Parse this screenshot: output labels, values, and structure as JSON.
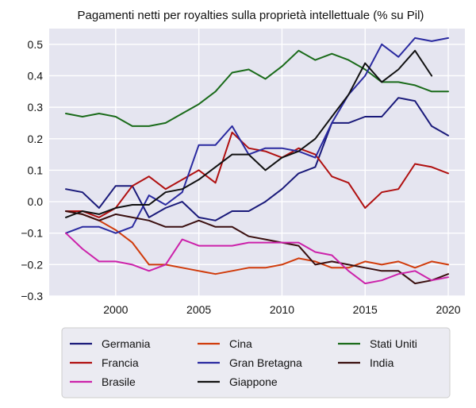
{
  "chart_data": {
    "type": "line",
    "title": "Pagamenti netti per royalties sulla proprietà intellettuale (% su Pil)",
    "xlabel": "",
    "ylabel": "",
    "xlim": [
      1996,
      2021
    ],
    "ylim": [
      -0.3,
      0.55
    ],
    "x_ticks": [
      2000,
      2005,
      2010,
      2015,
      2020
    ],
    "y_ticks": [
      -0.3,
      -0.2,
      -0.1,
      0.0,
      0.1,
      0.2,
      0.3,
      0.4,
      0.5
    ],
    "x_tick_labels": [
      "2000",
      "2005",
      "2010",
      "2015",
      "2020"
    ],
    "y_tick_labels": [
      "−0.3",
      "−0.2",
      "−0.1",
      "0.0",
      "0.1",
      "0.2",
      "0.3",
      "0.4",
      "0.5"
    ],
    "grid": true,
    "legend_position": "bottom",
    "background": "#e5e5f0",
    "series": [
      {
        "name": "Germania",
        "color": "#1a1a7a",
        "x": [
          1997,
          1998,
          1999,
          2000,
          2001,
          2002,
          2003,
          2004,
          2005,
          2006,
          2007,
          2008,
          2009,
          2010,
          2011,
          2012,
          2013,
          2014,
          2015,
          2016,
          2017,
          2018,
          2019,
          2020
        ],
        "y": [
          0.04,
          0.03,
          -0.02,
          0.05,
          0.05,
          -0.05,
          -0.02,
          0.0,
          -0.05,
          -0.06,
          -0.03,
          -0.03,
          0.0,
          0.04,
          0.09,
          0.11,
          0.25,
          0.25,
          0.27,
          0.27,
          0.33,
          0.32,
          0.24,
          0.21
        ]
      },
      {
        "name": "Cina",
        "color": "#d03b0b",
        "x": [
          1997,
          1998,
          1999,
          2000,
          2001,
          2002,
          2003,
          2004,
          2005,
          2006,
          2007,
          2008,
          2009,
          2010,
          2011,
          2012,
          2013,
          2014,
          2015,
          2016,
          2017,
          2018,
          2019,
          2020
        ],
        "y": [
          -0.03,
          -0.04,
          -0.06,
          -0.09,
          -0.13,
          -0.2,
          -0.2,
          -0.21,
          -0.22,
          -0.23,
          -0.22,
          -0.21,
          -0.21,
          -0.2,
          -0.18,
          -0.19,
          -0.21,
          -0.21,
          -0.19,
          -0.2,
          -0.19,
          -0.21,
          -0.19,
          -0.2
        ]
      },
      {
        "name": "Stati Uniti",
        "color": "#1a6b1a",
        "x": [
          1997,
          1998,
          1999,
          2000,
          2001,
          2002,
          2003,
          2004,
          2005,
          2006,
          2007,
          2008,
          2009,
          2010,
          2011,
          2012,
          2013,
          2014,
          2015,
          2016,
          2017,
          2018,
          2019,
          2020
        ],
        "y": [
          0.28,
          0.27,
          0.28,
          0.27,
          0.24,
          0.24,
          0.25,
          0.28,
          0.31,
          0.35,
          0.41,
          0.42,
          0.39,
          0.43,
          0.48,
          0.45,
          0.47,
          0.45,
          0.42,
          0.38,
          0.38,
          0.37,
          0.35,
          0.35
        ]
      },
      {
        "name": "Francia",
        "color": "#b01010",
        "x": [
          1997,
          1998,
          1999,
          2000,
          2001,
          2002,
          2003,
          2004,
          2005,
          2006,
          2007,
          2008,
          2009,
          2010,
          2011,
          2012,
          2013,
          2014,
          2015,
          2016,
          2017,
          2018,
          2019,
          2020
        ],
        "y": [
          -0.03,
          -0.03,
          -0.05,
          -0.02,
          0.05,
          0.08,
          0.04,
          0.07,
          0.1,
          0.06,
          0.22,
          0.17,
          0.16,
          0.14,
          0.17,
          0.15,
          0.08,
          0.06,
          -0.02,
          0.03,
          0.04,
          0.12,
          0.11,
          0.09
        ]
      },
      {
        "name": "Gran Bretagna",
        "color": "#2a2aa0",
        "x": [
          1997,
          1998,
          1999,
          2000,
          2001,
          2002,
          2003,
          2004,
          2005,
          2006,
          2007,
          2008,
          2009,
          2010,
          2011,
          2012,
          2013,
          2014,
          2015,
          2016,
          2017,
          2018,
          2019,
          2020
        ],
        "y": [
          -0.1,
          -0.08,
          -0.08,
          -0.1,
          -0.08,
          0.02,
          -0.01,
          0.03,
          0.18,
          0.18,
          0.24,
          0.15,
          0.17,
          0.17,
          0.16,
          0.14,
          0.25,
          0.34,
          0.4,
          0.5,
          0.46,
          0.52,
          0.51,
          0.52
        ]
      },
      {
        "name": "India",
        "color": "#3a0f0f",
        "x": [
          1997,
          1998,
          1999,
          2000,
          2001,
          2002,
          2003,
          2004,
          2005,
          2006,
          2007,
          2008,
          2009,
          2010,
          2011,
          2012,
          2013,
          2014,
          2015,
          2016,
          2017,
          2018,
          2019,
          2020
        ],
        "y": [
          -0.03,
          -0.04,
          -0.06,
          -0.04,
          -0.05,
          -0.06,
          -0.08,
          -0.08,
          -0.06,
          -0.08,
          -0.08,
          -0.11,
          -0.12,
          -0.13,
          -0.14,
          -0.2,
          -0.19,
          -0.2,
          -0.21,
          -0.22,
          -0.22,
          -0.26,
          -0.25,
          -0.23
        ]
      },
      {
        "name": "Brasile",
        "color": "#cc22aa",
        "x": [
          1997,
          1998,
          1999,
          2000,
          2001,
          2002,
          2003,
          2004,
          2005,
          2006,
          2007,
          2008,
          2009,
          2010,
          2011,
          2012,
          2013,
          2014,
          2015,
          2016,
          2017,
          2018,
          2019,
          2020
        ],
        "y": [
          -0.1,
          -0.15,
          -0.19,
          -0.19,
          -0.2,
          -0.22,
          -0.2,
          -0.12,
          -0.14,
          -0.14,
          -0.14,
          -0.13,
          -0.13,
          -0.13,
          -0.13,
          -0.16,
          -0.17,
          -0.22,
          -0.26,
          -0.25,
          -0.23,
          -0.22,
          -0.25,
          -0.24
        ]
      },
      {
        "name": "Giappone",
        "color": "#111111",
        "x": [
          1997,
          1998,
          1999,
          2000,
          2001,
          2002,
          2003,
          2004,
          2005,
          2006,
          2007,
          2008,
          2009,
          2010,
          2011,
          2012,
          2013,
          2014,
          2015,
          2016,
          2017,
          2018,
          2019
        ],
        "y": [
          -0.05,
          -0.03,
          -0.04,
          -0.02,
          -0.01,
          -0.01,
          0.03,
          0.04,
          0.07,
          0.11,
          0.15,
          0.15,
          0.1,
          0.14,
          0.16,
          0.2,
          0.27,
          0.34,
          0.44,
          0.38,
          0.42,
          0.48,
          0.4
        ]
      }
    ]
  }
}
